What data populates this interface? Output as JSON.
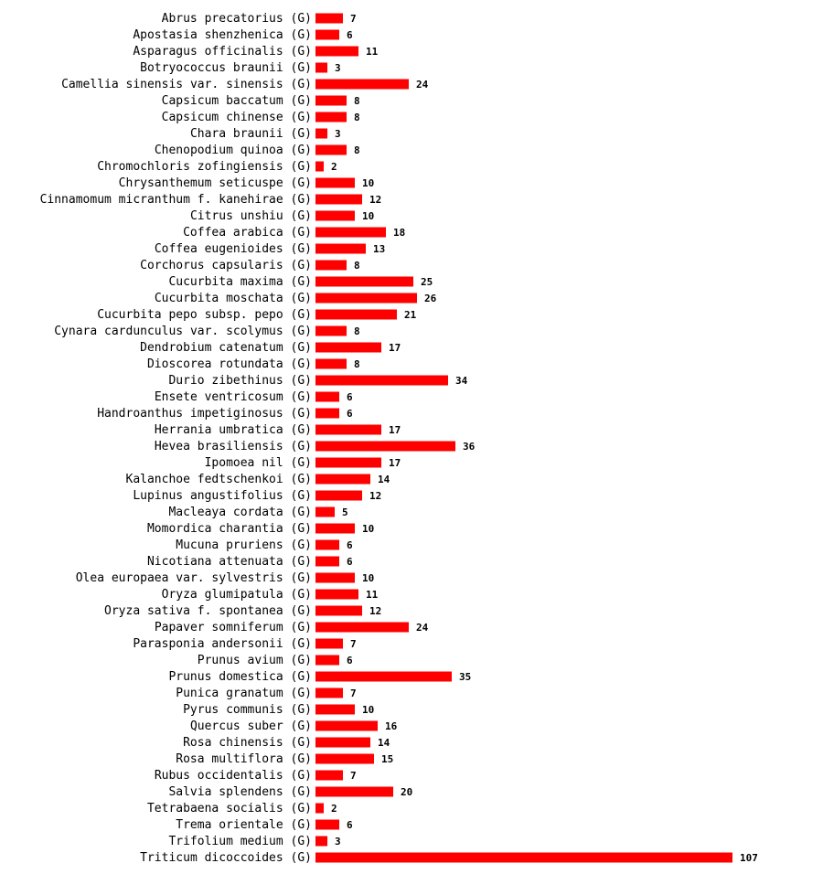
{
  "chart_data": {
    "type": "bar",
    "orientation": "horizontal",
    "title": "",
    "xlabel": "",
    "ylabel": "",
    "bar_color": "#ff0000",
    "label_suffix": "(G)",
    "categories": [
      "Abrus precatorius",
      "Apostasia shenzhenica",
      "Asparagus officinalis",
      "Botryococcus braunii",
      "Camellia sinensis var. sinensis",
      "Capsicum baccatum",
      "Capsicum chinense",
      "Chara braunii",
      "Chenopodium quinoa",
      "Chromochloris zofingiensis",
      "Chrysanthemum seticuspe",
      "Cinnamomum micranthum f. kanehirae",
      "Citrus unshiu",
      "Coffea arabica",
      "Coffea eugenioides",
      "Corchorus capsularis",
      "Cucurbita maxima",
      "Cucurbita moschata",
      "Cucurbita pepo subsp. pepo",
      "Cynara cardunculus var. scolymus",
      "Dendrobium catenatum",
      "Dioscorea rotundata",
      "Durio zibethinus",
      "Ensete ventricosum",
      "Handroanthus impetiginosus",
      "Herrania umbratica",
      "Hevea brasiliensis",
      "Ipomoea nil",
      "Kalanchoe fedtschenkoi",
      "Lupinus angustifolius",
      "Macleaya cordata",
      "Momordica charantia",
      "Mucuna pruriens",
      "Nicotiana attenuata",
      "Olea europaea var. sylvestris",
      "Oryza glumipatula",
      "Oryza sativa f. spontanea",
      "Papaver somniferum",
      "Parasponia andersonii",
      "Prunus avium",
      "Prunus domestica",
      "Punica granatum",
      "Pyrus communis",
      "Quercus suber",
      "Rosa chinensis",
      "Rosa multiflora",
      "Rubus occidentalis",
      "Salvia splendens",
      "Tetrabaena socialis",
      "Trema orientale",
      "Trifolium medium",
      "Triticum dicoccoides"
    ],
    "values": [
      7,
      6,
      11,
      3,
      24,
      8,
      8,
      3,
      8,
      2,
      10,
      12,
      10,
      18,
      13,
      8,
      25,
      26,
      21,
      8,
      17,
      8,
      34,
      6,
      6,
      17,
      36,
      17,
      14,
      12,
      5,
      10,
      6,
      6,
      10,
      11,
      12,
      24,
      7,
      6,
      35,
      7,
      10,
      16,
      14,
      15,
      7,
      20,
      2,
      6,
      3,
      107
    ],
    "xlim": [
      0,
      107
    ]
  }
}
